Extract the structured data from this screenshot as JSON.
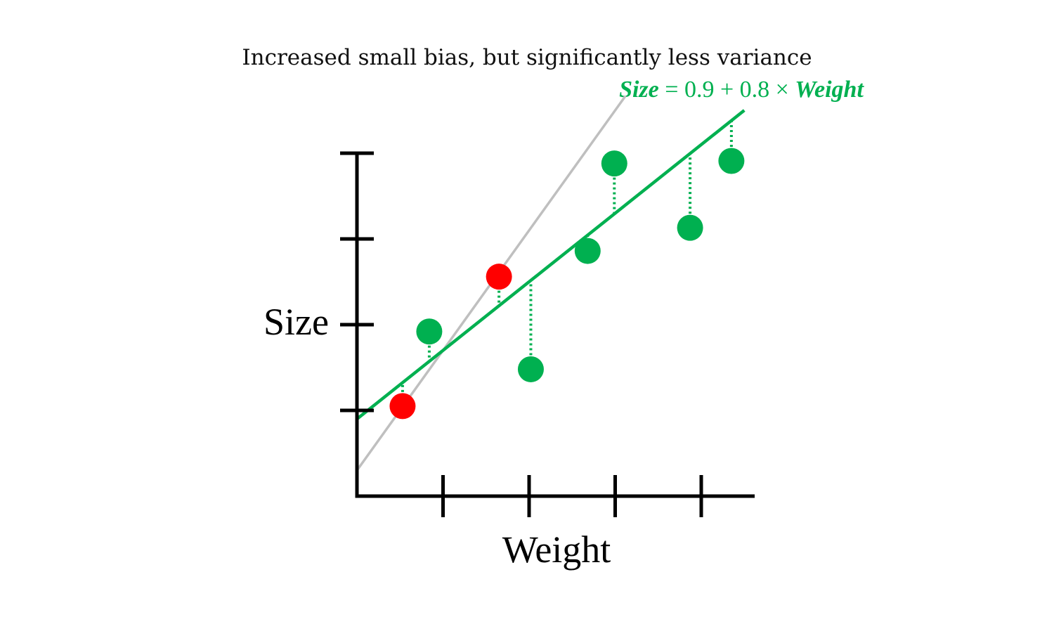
{
  "chart_data": {
    "type": "scatter",
    "title": "Increased small bias, but significantly less variance",
    "xlabel": "Weight",
    "ylabel": "Size",
    "xlim": [
      0,
      4.6
    ],
    "ylim": [
      0,
      4
    ],
    "x_ticks": [
      1,
      2,
      3,
      4
    ],
    "y_ticks": [
      1,
      2,
      3,
      4
    ],
    "grid": false,
    "colors": {
      "green": "#00b050",
      "red": "#ff0000",
      "gray_line": "#bfbfbf",
      "axis": "#000000"
    },
    "equation": {
      "lhs": "Size",
      "rest": " = 0.9 + 0.8 × ",
      "var": "Weight"
    },
    "series": [
      {
        "color": "#00b050",
        "points": [
          {
            "x": 0.84,
            "y": 1.92
          },
          {
            "x": 2.02,
            "y": 1.48
          },
          {
            "x": 2.68,
            "y": 2.86
          },
          {
            "x": 2.99,
            "y": 3.88
          },
          {
            "x": 3.87,
            "y": 3.13
          },
          {
            "x": 4.35,
            "y": 3.91
          }
        ]
      },
      {
        "color": "#ff0000",
        "points": [
          {
            "x": 0.53,
            "y": 1.05
          },
          {
            "x": 1.65,
            "y": 2.56
          }
        ]
      }
    ],
    "lines": [
      {
        "color": "#00b050",
        "intercept": 0.9,
        "slope": 0.8,
        "x_range": [
          0,
          4.5
        ]
      },
      {
        "color": "#bfbfbf",
        "intercept": 0.3,
        "slope": 1.4,
        "x_range": [
          0,
          3.12
        ]
      }
    ]
  }
}
